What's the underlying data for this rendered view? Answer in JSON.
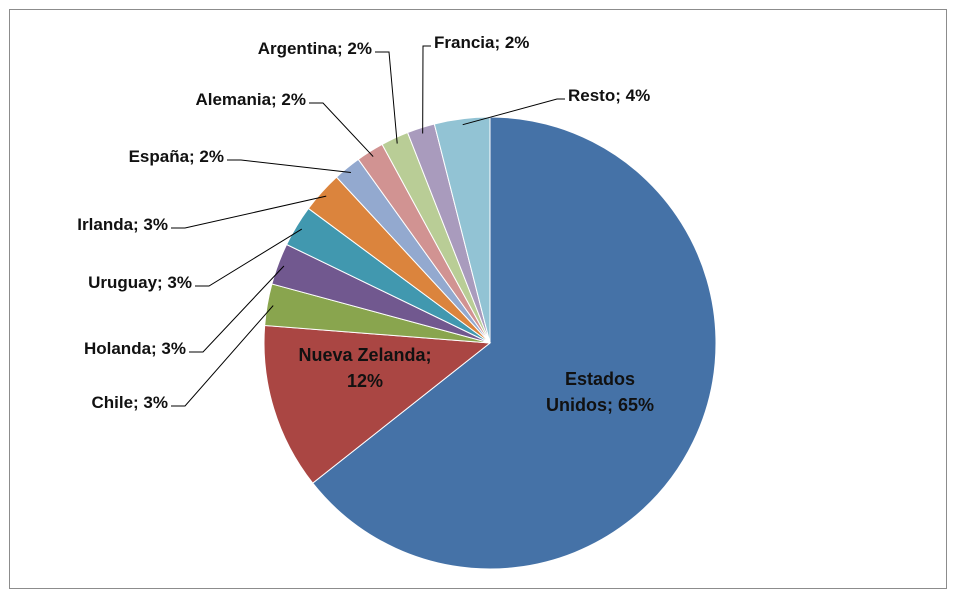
{
  "chart_data": {
    "type": "pie",
    "labels": [
      "Estados Unidos; 65%",
      "Nueva Zelanda; 12%",
      "Chile; 3%",
      "Holanda; 3%",
      "Uruguay; 3%",
      "Irlanda; 3%",
      "España; 2%",
      "Alemania; 2%",
      "Argentina; 2%",
      "Francia; 2%",
      "Resto; 4%"
    ],
    "values": [
      65,
      12,
      3,
      3,
      3,
      3,
      2,
      2,
      2,
      2,
      4
    ],
    "colors": [
      "#4572a7",
      "#aa4643",
      "#89a54e",
      "#71588f",
      "#4198af",
      "#db843d",
      "#93a9cf",
      "#d19392",
      "#b9cd96",
      "#a99bbd",
      "#92c3d4"
    ]
  }
}
